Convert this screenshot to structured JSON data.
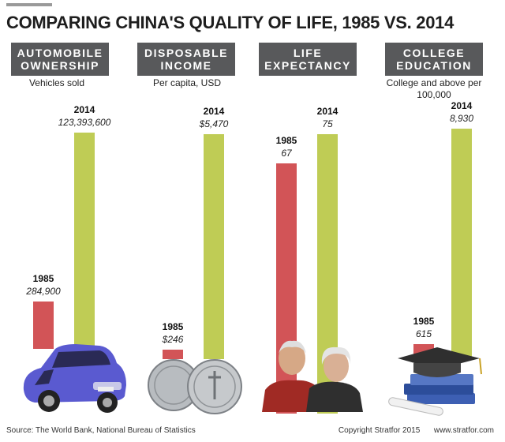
{
  "title": "COMPARING CHINA'S QUALITY OF LIFE, 1985 VS. 2014",
  "colors": {
    "bar_1985": "#d25457",
    "bar_2014": "#bfcc55",
    "header_bg": "#58595b"
  },
  "panels": [
    {
      "header": "AUTOMOBILE\nOWNERSHIP",
      "subtitle": "Vehicles sold",
      "illustration": "car-icon"
    },
    {
      "header": "DISPOSABLE\nINCOME",
      "subtitle": "Per capita, USD",
      "illustration": "coins-icon"
    },
    {
      "header": "LIFE\nEXPECTANCY",
      "subtitle": "",
      "illustration": "elderly-couple-icon"
    },
    {
      "header": "COLLEGE\nEDUCATION",
      "subtitle": "College and above per 100,000",
      "illustration": "graduation-cap-books-icon"
    }
  ],
  "chart_data": [
    {
      "type": "bar",
      "title": "AUTOMOBILE OWNERSHIP",
      "ylabel": "Vehicles sold",
      "categories": [
        "1985",
        "2014"
      ],
      "values": [
        284900,
        123393600
      ],
      "value_labels": [
        "284,900",
        "123,393,600"
      ]
    },
    {
      "type": "bar",
      "title": "DISPOSABLE INCOME",
      "ylabel": "Per capita, USD",
      "categories": [
        "1985",
        "2014"
      ],
      "values": [
        246,
        5470
      ],
      "value_labels": [
        "$246",
        "$5,470"
      ]
    },
    {
      "type": "bar",
      "title": "LIFE EXPECTANCY",
      "ylabel": "",
      "categories": [
        "1985",
        "2014"
      ],
      "values": [
        67,
        75
      ],
      "value_labels": [
        "67",
        "75"
      ]
    },
    {
      "type": "bar",
      "title": "COLLEGE EDUCATION",
      "ylabel": "College and above per 100,000",
      "categories": [
        "1985",
        "2014"
      ],
      "values": [
        615,
        8930
      ],
      "value_labels": [
        "615",
        "8,930"
      ]
    }
  ],
  "footer": {
    "source": "Source: The World Bank, National Bureau of Statistics",
    "copyright": "Copyright Stratfor 2015",
    "website": "www.stratfor.com"
  }
}
